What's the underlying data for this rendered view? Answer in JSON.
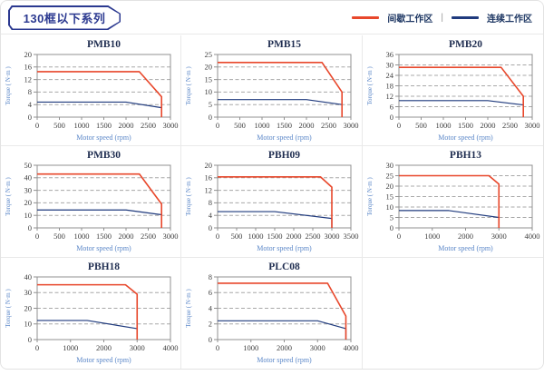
{
  "header": {
    "badge": "130框以下系列"
  },
  "legend": {
    "intermittent_label": "间歇工作区",
    "separator": "|",
    "continuous_label": "连续工作区",
    "intermittent_color": "#e8472b",
    "continuous_color": "#1f3a7d"
  },
  "colors": {
    "red_line": "#e8472b",
    "navy_line": "#1f3a7d",
    "title_text": "#1f2d50",
    "tick_text": "#404040",
    "axis_border": "#909090",
    "grid_dash": "#a8a8a8",
    "axis_label_blue": "#5b87c8"
  },
  "chart_data": [
    {
      "type": "line",
      "title": "PMB10",
      "xlabel": "Motor speed (rpm)",
      "ylabel": "Torque ( N·m )",
      "xlim": [
        0,
        3000
      ],
      "ylim": [
        0,
        20
      ],
      "xticks": [
        0,
        500,
        1000,
        1500,
        2000,
        2500,
        3000
      ],
      "yticks": [
        0,
        4,
        8,
        12,
        16,
        20
      ],
      "series": [
        {
          "name": "间歇工作区",
          "color": "#e8472b",
          "points": [
            [
              0,
              14.5
            ],
            [
              2300,
              14.5
            ],
            [
              2800,
              6.5
            ],
            [
              2800,
              0
            ]
          ]
        },
        {
          "name": "连续工作区",
          "color": "#1f3a7d",
          "points": [
            [
              0,
              4.8
            ],
            [
              2000,
              4.8
            ],
            [
              2800,
              3
            ],
            [
              2800,
              0
            ]
          ]
        }
      ]
    },
    {
      "type": "line",
      "title": "PMB15",
      "xlabel": "Motor speed (rpm)",
      "ylabel": "Torque ( N·m )",
      "xlim": [
        0,
        3000
      ],
      "ylim": [
        0,
        25
      ],
      "xticks": [
        0,
        500,
        1000,
        1500,
        2000,
        2500,
        3000
      ],
      "yticks": [
        0,
        5,
        10,
        15,
        20,
        25
      ],
      "series": [
        {
          "name": "间歇工作区",
          "color": "#e8472b",
          "points": [
            [
              0,
              21.8
            ],
            [
              2350,
              21.8
            ],
            [
              2800,
              10
            ],
            [
              2800,
              0
            ]
          ]
        },
        {
          "name": "连续工作区",
          "color": "#1f3a7d",
          "points": [
            [
              0,
              7
            ],
            [
              2000,
              7
            ],
            [
              2800,
              5
            ],
            [
              2800,
              0
            ]
          ]
        }
      ]
    },
    {
      "type": "line",
      "title": "PMB20",
      "xlabel": "Motor speed (rpm)",
      "ylabel": "Torque ( N·m )",
      "xlim": [
        0,
        3000
      ],
      "ylim": [
        0,
        36
      ],
      "xticks": [
        0,
        500,
        1000,
        1500,
        2000,
        2500,
        3000
      ],
      "yticks": [
        0,
        6,
        12,
        18,
        24,
        30,
        36
      ],
      "series": [
        {
          "name": "间歇工作区",
          "color": "#e8472b",
          "points": [
            [
              0,
              28.6
            ],
            [
              2300,
              28.6
            ],
            [
              2800,
              12
            ],
            [
              2800,
              0
            ]
          ]
        },
        {
          "name": "连续工作区",
          "color": "#1f3a7d",
          "points": [
            [
              0,
              9.5
            ],
            [
              2000,
              9.5
            ],
            [
              2800,
              7
            ],
            [
              2800,
              0
            ]
          ]
        }
      ]
    },
    {
      "type": "line",
      "title": "PMB30",
      "xlabel": "Motor speed (rpm)",
      "ylabel": "Torque ( N·m )",
      "xlim": [
        0,
        3000
      ],
      "ylim": [
        0,
        50
      ],
      "xticks": [
        0,
        500,
        1000,
        1500,
        2000,
        2500,
        3000
      ],
      "yticks": [
        0,
        10,
        20,
        30,
        40,
        50
      ],
      "series": [
        {
          "name": "间歇工作区",
          "color": "#e8472b",
          "points": [
            [
              0,
              43
            ],
            [
              2300,
              43
            ],
            [
              2800,
              19
            ],
            [
              2800,
              0
            ]
          ]
        },
        {
          "name": "连续工作区",
          "color": "#1f3a7d",
          "points": [
            [
              0,
              14.3
            ],
            [
              2000,
              14.3
            ],
            [
              2800,
              10.5
            ],
            [
              2800,
              0
            ]
          ]
        }
      ]
    },
    {
      "type": "line",
      "title": "PBH09",
      "xlabel": "Motor speed (rpm)",
      "ylabel": "Torque ( N·m )",
      "xlim": [
        0,
        3500
      ],
      "ylim": [
        0,
        20
      ],
      "xticks": [
        0,
        500,
        1000,
        1500,
        2000,
        2500,
        3000,
        3500
      ],
      "yticks": [
        0,
        4,
        8,
        12,
        16,
        20
      ],
      "series": [
        {
          "name": "间歇工作区",
          "color": "#e8472b",
          "points": [
            [
              0,
              16.3
            ],
            [
              2700,
              16.3
            ],
            [
              3000,
              13
            ],
            [
              3000,
              0
            ]
          ]
        },
        {
          "name": "连续工作区",
          "color": "#1f3a7d",
          "points": [
            [
              0,
              5.2
            ],
            [
              1500,
              5.2
            ],
            [
              3000,
              3
            ],
            [
              3000,
              0
            ]
          ]
        }
      ]
    },
    {
      "type": "line",
      "title": "PBH13",
      "xlabel": "Motor speed (rpm)",
      "ylabel": "Torque ( N·m )",
      "xlim": [
        0,
        4000
      ],
      "ylim": [
        0,
        30
      ],
      "xticks": [
        0,
        1000,
        2000,
        3000,
        4000
      ],
      "yticks": [
        0,
        5,
        10,
        15,
        20,
        25,
        30
      ],
      "series": [
        {
          "name": "间歇工作区",
          "color": "#e8472b",
          "points": [
            [
              0,
              25
            ],
            [
              2700,
              25
            ],
            [
              3000,
              21
            ],
            [
              3000,
              0
            ]
          ]
        },
        {
          "name": "连续工作区",
          "color": "#1f3a7d",
          "points": [
            [
              0,
              8.3
            ],
            [
              1500,
              8.3
            ],
            [
              3000,
              5
            ],
            [
              3000,
              0
            ]
          ]
        }
      ]
    },
    {
      "type": "line",
      "title": "PBH18",
      "xlabel": "Motor speed (rpm)",
      "ylabel": "Torque ( N·m )",
      "xlim": [
        0,
        4000
      ],
      "ylim": [
        0,
        40
      ],
      "xticks": [
        0,
        1000,
        2000,
        3000,
        4000
      ],
      "yticks": [
        0,
        10,
        20,
        30,
        40
      ],
      "series": [
        {
          "name": "间歇工作区",
          "color": "#e8472b",
          "points": [
            [
              0,
              35
            ],
            [
              2650,
              35
            ],
            [
              3000,
              29
            ],
            [
              3000,
              0
            ]
          ]
        },
        {
          "name": "连续工作区",
          "color": "#1f3a7d",
          "points": [
            [
              0,
              12.2
            ],
            [
              1500,
              12.2
            ],
            [
              3000,
              7
            ],
            [
              3000,
              0
            ]
          ]
        }
      ]
    },
    {
      "type": "line",
      "title": "PLC08",
      "xlabel": "Motor speed (rpm)",
      "ylabel": "Torque ( N·m )",
      "xlim": [
        0,
        4000
      ],
      "ylim": [
        0,
        8
      ],
      "xticks": [
        0,
        1000,
        2000,
        3000,
        4000
      ],
      "yticks": [
        0,
        2,
        4,
        6,
        8
      ],
      "series": [
        {
          "name": "间歇工作区",
          "color": "#e8472b",
          "points": [
            [
              0,
              7.2
            ],
            [
              3300,
              7.2
            ],
            [
              3850,
              3
            ],
            [
              3850,
              0
            ]
          ]
        },
        {
          "name": "连续工作区",
          "color": "#1f3a7d",
          "points": [
            [
              0,
              2.4
            ],
            [
              3000,
              2.4
            ],
            [
              3850,
              1.4
            ],
            [
              3850,
              0
            ]
          ]
        }
      ]
    }
  ]
}
